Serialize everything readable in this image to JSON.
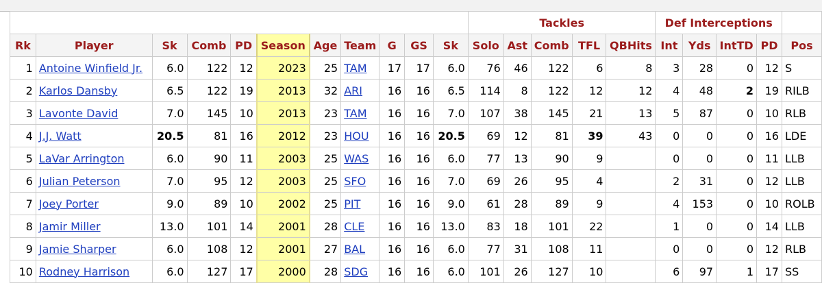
{
  "table": {
    "groups": [
      "Tackles",
      "Def Interceptions"
    ],
    "columns": [
      "Rk",
      "Player",
      "Sk",
      "Comb",
      "PD",
      "Season",
      "Age",
      "Team",
      "G",
      "GS",
      "Sk",
      "Solo",
      "Ast",
      "Comb",
      "TFL",
      "QBHits",
      "Int",
      "Yds",
      "IntTD",
      "PD",
      "Pos"
    ],
    "rows": [
      [
        1,
        "Antoine Winfield Jr.",
        "6.0",
        122,
        12,
        2023,
        25,
        "TAM",
        17,
        17,
        "6.0",
        76,
        46,
        122,
        6,
        8,
        3,
        28,
        0,
        12,
        "S"
      ],
      [
        2,
        "Karlos Dansby",
        "6.5",
        122,
        19,
        2013,
        32,
        "ARI",
        16,
        16,
        "6.5",
        114,
        8,
        122,
        12,
        12,
        4,
        48,
        2,
        19,
        "RILB"
      ],
      [
        3,
        "Lavonte David",
        "7.0",
        145,
        10,
        2013,
        23,
        "TAM",
        16,
        16,
        "7.0",
        107,
        38,
        145,
        21,
        13,
        5,
        87,
        0,
        10,
        "RLB"
      ],
      [
        4,
        "J.J. Watt",
        "20.5",
        81,
        16,
        2012,
        23,
        "HOU",
        16,
        16,
        "20.5",
        69,
        12,
        81,
        39,
        43,
        0,
        0,
        0,
        16,
        "LDE"
      ],
      [
        5,
        "LaVar Arrington",
        "6.0",
        90,
        11,
        2003,
        25,
        "WAS",
        16,
        16,
        "6.0",
        77,
        13,
        90,
        9,
        null,
        0,
        0,
        0,
        11,
        "LLB"
      ],
      [
        6,
        "Julian Peterson",
        "7.0",
        95,
        12,
        2003,
        25,
        "SFO",
        16,
        16,
        "7.0",
        69,
        26,
        95,
        4,
        null,
        2,
        31,
        0,
        12,
        "LLB"
      ],
      [
        7,
        "Joey Porter",
        "9.0",
        89,
        10,
        2002,
        25,
        "PIT",
        16,
        16,
        "9.0",
        61,
        28,
        89,
        9,
        null,
        4,
        153,
        0,
        10,
        "ROLB"
      ],
      [
        8,
        "Jamir Miller",
        "13.0",
        101,
        14,
        2001,
        28,
        "CLE",
        16,
        16,
        "13.0",
        83,
        18,
        101,
        22,
        null,
        1,
        0,
        0,
        14,
        "LLB"
      ],
      [
        9,
        "Jamie Sharper",
        "6.0",
        108,
        12,
        2001,
        27,
        "BAL",
        16,
        16,
        "6.0",
        77,
        31,
        108,
        11,
        null,
        0,
        0,
        0,
        12,
        "RLB"
      ],
      [
        10,
        "Rodney Harrison",
        "6.0",
        127,
        17,
        2000,
        28,
        "SDG",
        16,
        16,
        "6.0",
        101,
        26,
        127,
        10,
        null,
        6,
        97,
        1,
        17,
        "SS"
      ]
    ]
  }
}
